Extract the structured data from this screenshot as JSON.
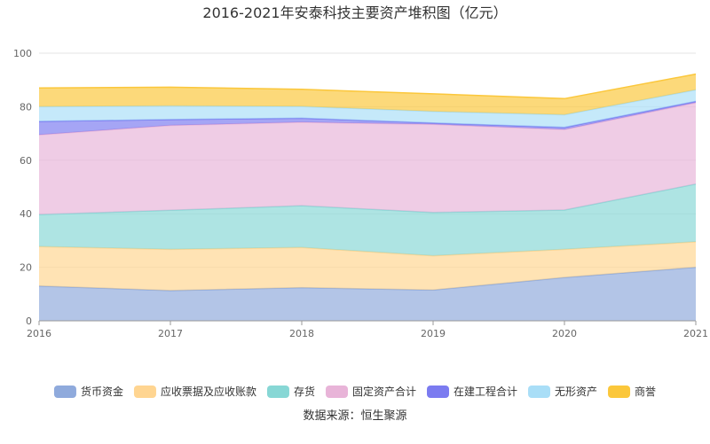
{
  "chart_data": {
    "type": "area",
    "stacked": true,
    "title": "2016-2021年安泰科技主要资产堆积图（亿元）",
    "xlabel": "",
    "ylabel": "",
    "categories": [
      "2016",
      "2017",
      "2018",
      "2019",
      "2020",
      "2021"
    ],
    "ylim": [
      0,
      100
    ],
    "yticks": [
      0,
      20,
      40,
      60,
      80,
      100
    ],
    "grid": true,
    "legend_position": "bottom",
    "series": [
      {
        "name": "货币资金",
        "color": "#8faadc",
        "values": [
          13.0,
          11.3,
          12.4,
          11.5,
          16.2,
          20.0
        ]
      },
      {
        "name": "应收票据及应收账款",
        "color": "#ffd591",
        "values": [
          14.7,
          15.4,
          15.0,
          12.8,
          10.5,
          9.5
        ]
      },
      {
        "name": "存货",
        "color": "#87d7d5",
        "values": [
          12.0,
          14.6,
          15.6,
          16.2,
          14.7,
          21.6
        ]
      },
      {
        "name": "固定资产合计",
        "color": "#e8b4d8",
        "values": [
          29.8,
          31.7,
          31.2,
          32.9,
          30.1,
          30.4
        ]
      },
      {
        "name": "在建工程合计",
        "color": "#7b7bf0",
        "values": [
          5.0,
          2.2,
          1.5,
          0.5,
          0.8,
          0.5
        ]
      },
      {
        "name": "无形资产",
        "color": "#a9def7",
        "values": [
          5.5,
          5.1,
          4.4,
          4.3,
          4.7,
          4.3
        ]
      },
      {
        "name": "商誉",
        "color": "#fbc73b",
        "values": [
          7.0,
          7.0,
          6.4,
          6.6,
          6.0,
          5.9
        ]
      }
    ]
  },
  "source_text": "数据来源：恒生聚源"
}
